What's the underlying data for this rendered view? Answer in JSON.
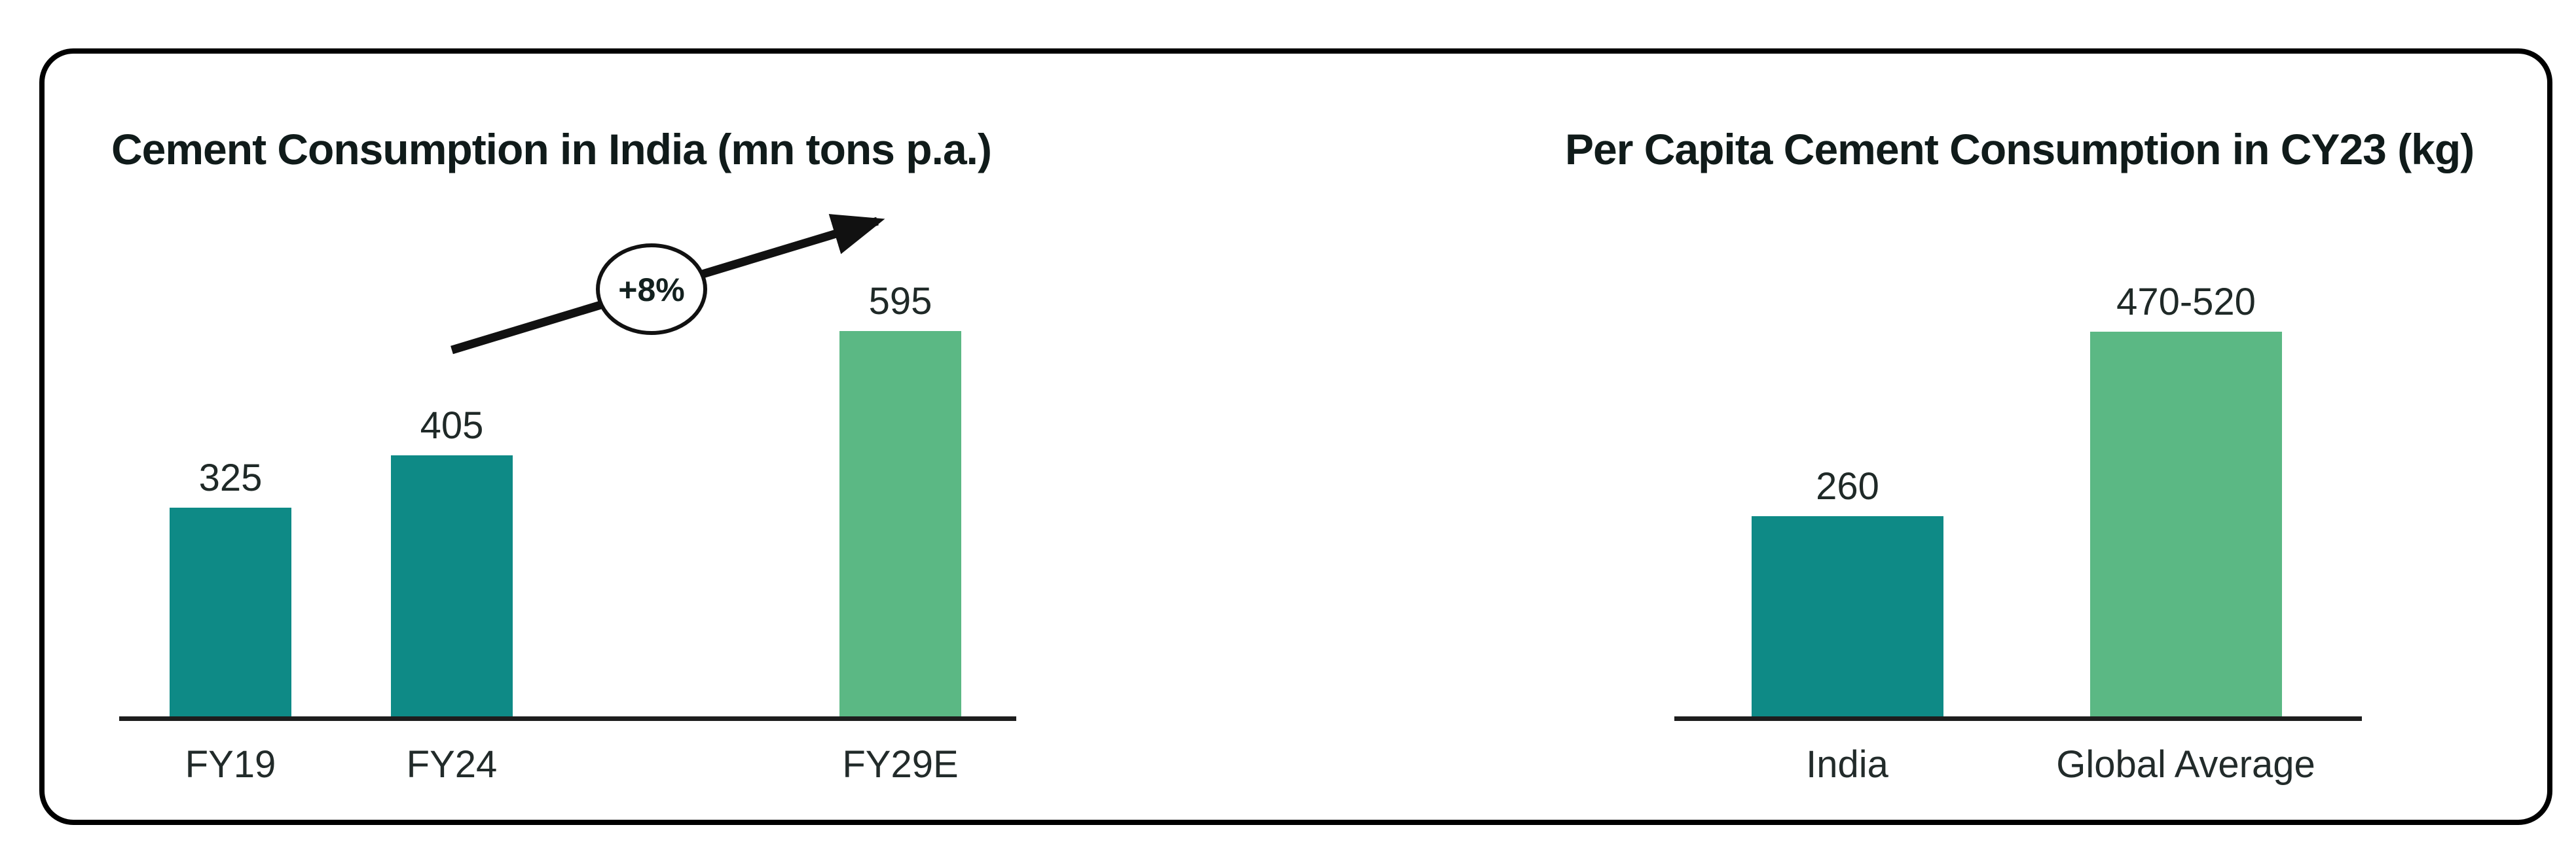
{
  "chart_data": [
    {
      "type": "bar",
      "title": "Cement Consumption in India (mn tons p.a.)",
      "categories": [
        "FY19",
        "FY24",
        "FY29E"
      ],
      "values": [
        325,
        405,
        595
      ],
      "value_labels": [
        "325",
        "405",
        "595"
      ],
      "bar_colors": [
        "#0e8a86",
        "#0e8a86",
        "#5bb884"
      ],
      "annotation": {
        "label": "+8%",
        "shape": "ellipse-on-arrow",
        "arrow_direction": "up-right",
        "meaning": "growth from FY24 to FY29E"
      },
      "xlabel": "",
      "ylabel": "",
      "gridlines": false,
      "legend": false,
      "value_axis_visible": false,
      "value_labels_position": "above-bars"
    },
    {
      "type": "bar",
      "title": "Per Capita Cement Consumption in CY23 (kg)",
      "categories": [
        "India",
        "Global Average"
      ],
      "values": [
        260,
        "470-520"
      ],
      "value_labels": [
        "260",
        "470-520"
      ],
      "bar_colors": [
        "#0e8a86",
        "#5bb884"
      ],
      "xlabel": "",
      "ylabel": "",
      "gridlines": false,
      "legend": false,
      "value_axis_visible": false,
      "value_labels_position": "above-bars"
    }
  ],
  "colors": {
    "teal_bar": "#0e8a86",
    "green_bar": "#5bb884",
    "axis_line": "#1d1d1d",
    "title_text": "#101b1a",
    "label_text": "#1f2927",
    "frame_border": "#000000",
    "background": "#ffffff",
    "annotation_fill": "#ffffff",
    "annotation_stroke": "#111111"
  }
}
